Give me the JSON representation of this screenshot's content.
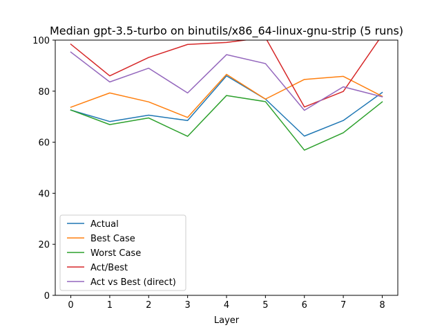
{
  "chart_data": {
    "type": "line",
    "title": "Median gpt-3.5-turbo on binutils/x86_64-linux-gnu-strip (5 runs)",
    "xlabel": "Layer",
    "ylabel": "",
    "x": [
      0,
      1,
      2,
      3,
      4,
      5,
      6,
      7,
      8
    ],
    "xlim": [
      -0.4,
      8.4
    ],
    "ylim": [
      0,
      100
    ],
    "xticks": [
      0,
      1,
      2,
      3,
      4,
      5,
      6,
      7,
      8
    ],
    "yticks": [
      0,
      20,
      40,
      60,
      80,
      100
    ],
    "grid": false,
    "legend_position": "lower-left",
    "series": [
      {
        "name": "Actual",
        "color": "#1f77b4",
        "values": [
          72.6,
          68.1,
          70.6,
          68.5,
          86.0,
          76.9,
          62.4,
          68.5,
          79.5
        ]
      },
      {
        "name": "Best Case",
        "color": "#ff7f0e",
        "values": [
          73.7,
          79.3,
          75.8,
          69.7,
          86.6,
          76.9,
          84.6,
          85.8,
          78.0
        ]
      },
      {
        "name": "Worst Case",
        "color": "#2ca02c",
        "values": [
          72.6,
          66.9,
          69.5,
          62.3,
          78.3,
          75.9,
          56.9,
          63.7,
          75.8
        ]
      },
      {
        "name": "Act/Best",
        "color": "#d62728",
        "values": [
          98.4,
          86.0,
          93.2,
          98.3,
          99.1,
          101.0,
          73.8,
          79.9,
          102.0
        ]
      },
      {
        "name": "Act vs Best (direct)",
        "color": "#9467bd",
        "values": [
          95.3,
          83.6,
          89.0,
          79.3,
          94.3,
          90.8,
          72.5,
          81.7,
          77.8
        ]
      }
    ]
  }
}
